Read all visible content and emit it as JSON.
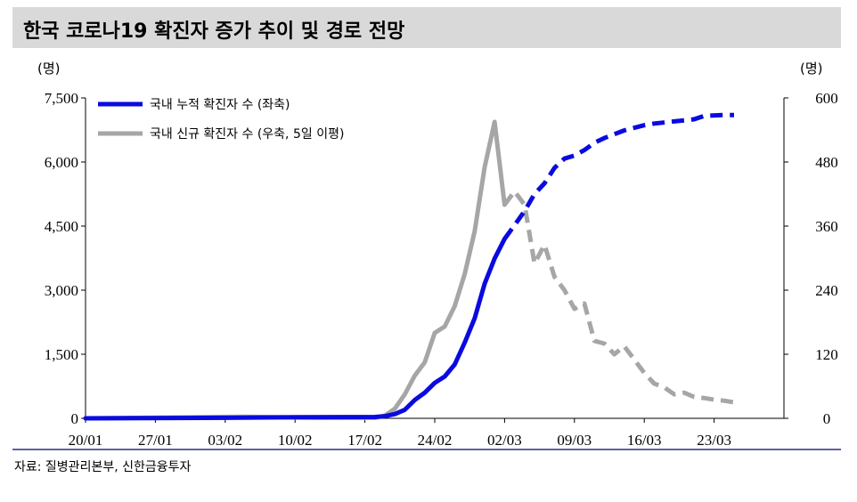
{
  "title": "한국 코로나19 확진자 증가 추이 및 경로 전망",
  "source": "자료: 질병관리본부, 신한금융투자",
  "colors": {
    "cumulative": "#0a0ae0",
    "daily": "#a6a6a6",
    "title_bg": "#d9d9d9",
    "rule": "#2b2b8c"
  },
  "chart_data": {
    "type": "line",
    "left_unit": "(명)",
    "right_unit": "(명)",
    "y_left": {
      "min": 0,
      "max": 7500,
      "ticks": [
        "0",
        "1,500",
        "3,000",
        "4,500",
        "6,000",
        "7,500"
      ]
    },
    "y_right": {
      "min": 0,
      "max": 600,
      "ticks": [
        "0",
        "120",
        "240",
        "360",
        "480",
        "600"
      ]
    },
    "x_tick_labels": [
      "20/01",
      "27/01",
      "03/02",
      "10/02",
      "17/02",
      "24/02",
      "02/03",
      "09/03",
      "16/03",
      "23/03"
    ],
    "x_range_days": [
      "2020-01-20",
      "2020-03-30"
    ],
    "series": [
      {
        "name": "국내 누적 확진자 수 (좌축)",
        "axis": "left",
        "color": "#0a0ae0",
        "actual": [
          [
            "2020-01-20",
            0
          ],
          [
            "2020-02-01",
            10
          ],
          [
            "2020-02-10",
            25
          ],
          [
            "2020-02-18",
            31
          ],
          [
            "2020-02-19",
            50
          ],
          [
            "2020-02-20",
            100
          ],
          [
            "2020-02-21",
            200
          ],
          [
            "2020-02-22",
            430
          ],
          [
            "2020-02-23",
            600
          ],
          [
            "2020-02-24",
            830
          ],
          [
            "2020-02-25",
            980
          ],
          [
            "2020-02-26",
            1260
          ],
          [
            "2020-02-27",
            1770
          ],
          [
            "2020-02-28",
            2340
          ],
          [
            "2020-02-29",
            3150
          ],
          [
            "2020-03-01",
            3740
          ],
          [
            "2020-03-02",
            4200
          ]
        ],
        "projected": [
          [
            "2020-03-02",
            4200
          ],
          [
            "2020-03-03",
            4520
          ],
          [
            "2020-03-04",
            4850
          ],
          [
            "2020-03-05",
            5250
          ],
          [
            "2020-03-06",
            5500
          ],
          [
            "2020-03-07",
            5860
          ],
          [
            "2020-03-08",
            6080
          ],
          [
            "2020-03-09",
            6150
          ],
          [
            "2020-03-10",
            6280
          ],
          [
            "2020-03-11",
            6450
          ],
          [
            "2020-03-12",
            6560
          ],
          [
            "2020-03-13",
            6650
          ],
          [
            "2020-03-14",
            6740
          ],
          [
            "2020-03-15",
            6800
          ],
          [
            "2020-03-16",
            6860
          ],
          [
            "2020-03-17",
            6900
          ],
          [
            "2020-03-19",
            6950
          ],
          [
            "2020-03-21",
            7000
          ],
          [
            "2020-03-22",
            7080
          ],
          [
            "2020-03-24",
            7100
          ],
          [
            "2020-03-25",
            7100
          ]
        ]
      },
      {
        "name": "국내 신규 확진자 수 (우축, 5일 이평)",
        "axis": "right",
        "color": "#a6a6a6",
        "actual": [
          [
            "2020-01-20",
            0
          ],
          [
            "2020-01-31",
            2
          ],
          [
            "2020-02-05",
            3
          ],
          [
            "2020-02-12",
            1
          ],
          [
            "2020-02-18",
            1
          ],
          [
            "2020-02-19",
            5
          ],
          [
            "2020-02-20",
            18
          ],
          [
            "2020-02-21",
            45
          ],
          [
            "2020-02-22",
            80
          ],
          [
            "2020-02-23",
            105
          ],
          [
            "2020-02-24",
            160
          ],
          [
            "2020-02-25",
            172
          ],
          [
            "2020-02-26",
            210
          ],
          [
            "2020-02-27",
            270
          ],
          [
            "2020-02-28",
            350
          ],
          [
            "2020-02-29",
            470
          ],
          [
            "2020-03-01",
            555
          ],
          [
            "2020-03-02",
            400
          ]
        ],
        "projected": [
          [
            "2020-03-02",
            400
          ],
          [
            "2020-03-03",
            425
          ],
          [
            "2020-03-04",
            400
          ],
          [
            "2020-03-05",
            290
          ],
          [
            "2020-03-06",
            325
          ],
          [
            "2020-03-07",
            265
          ],
          [
            "2020-03-08",
            240
          ],
          [
            "2020-03-09",
            205
          ],
          [
            "2020-03-10",
            215
          ],
          [
            "2020-03-11",
            145
          ],
          [
            "2020-03-12",
            140
          ],
          [
            "2020-03-13",
            120
          ],
          [
            "2020-03-14",
            135
          ],
          [
            "2020-03-15",
            110
          ],
          [
            "2020-03-16",
            85
          ],
          [
            "2020-03-17",
            65
          ],
          [
            "2020-03-18",
            58
          ],
          [
            "2020-03-19",
            45
          ],
          [
            "2020-03-20",
            48
          ],
          [
            "2020-03-21",
            40
          ],
          [
            "2020-03-22",
            38
          ],
          [
            "2020-03-23",
            35
          ],
          [
            "2020-03-24",
            33
          ],
          [
            "2020-03-25",
            30
          ]
        ]
      }
    ],
    "grid": false,
    "legend_position": "top-left"
  }
}
